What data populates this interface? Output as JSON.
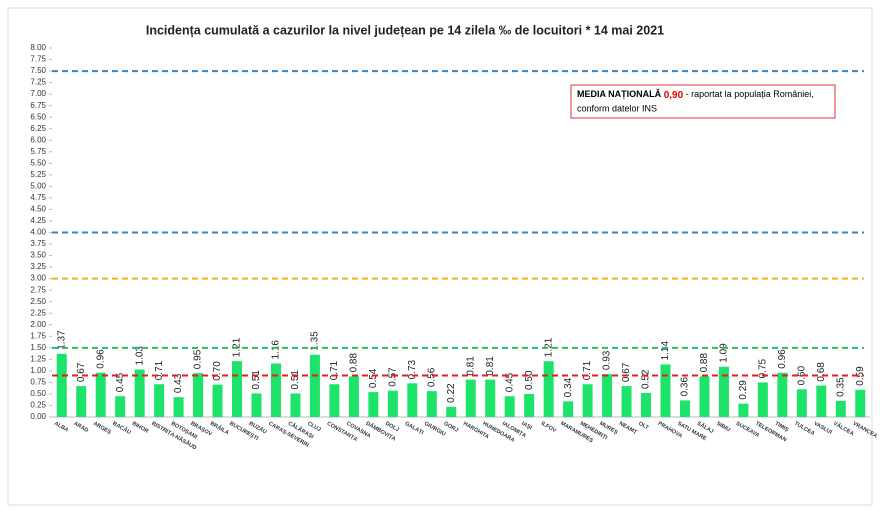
{
  "chart_data": {
    "type": "bar",
    "title": "Incidența cumulată a cazurilor la nivel județean pe 14 zilela ‰ de locuitori *  14 mai 2021",
    "categories": [
      "ALBA",
      "ARAD",
      "ARGEȘ",
      "BACĂU",
      "BIHOR",
      "BISTRIȚA-NĂSĂUD",
      "BOTOȘANI",
      "BRAȘOV",
      "BRĂILA",
      "BUCUREȘTI",
      "BUZĂU",
      "CARAȘ-SEVERIN",
      "CĂLĂRAȘI",
      "CLUJ",
      "CONSTANȚA",
      "COVASNA",
      "DÂMBOVIȚA",
      "DOLJ",
      "GALAȚI",
      "GIURGIU",
      "GORJ",
      "HARGHITA",
      "HUNEDOARA",
      "IALOMIȚA",
      "IAȘI",
      "ILFOV",
      "MARAMUREȘ",
      "MEHEDINȚI",
      "MUREȘ",
      "NEAMȚ",
      "OLT",
      "PRAHOVA",
      "SATU MARE",
      "SĂLAJ",
      "SIBIU",
      "SUCEAVA",
      "TELEORMAN",
      "TIMIȘ",
      "TULCEA",
      "VASLUI",
      "VÂLCEA",
      "VRANCEA"
    ],
    "values": [
      1.37,
      0.67,
      0.96,
      0.45,
      1.03,
      0.71,
      0.43,
      0.95,
      0.7,
      1.21,
      0.51,
      1.16,
      0.51,
      1.35,
      0.71,
      0.88,
      0.54,
      0.57,
      0.73,
      0.56,
      0.22,
      0.81,
      0.81,
      0.45,
      0.5,
      1.21,
      0.34,
      0.71,
      0.93,
      0.67,
      0.52,
      1.14,
      0.36,
      0.88,
      1.09,
      0.29,
      0.75,
      0.96,
      0.6,
      0.68,
      0.35,
      0.59
    ],
    "value_labels": [
      "1.37",
      "0.67",
      "0.96",
      "0.45",
      "1.03",
      "0.71",
      "0.43",
      "0.95",
      "0.70",
      "1.21",
      "0.51",
      "1.16",
      "0.51",
      "1.35",
      "0.71",
      "0.88",
      "0.54",
      "0.57",
      "0.73",
      "0.56",
      "0.22",
      "0.81",
      "0.81",
      "0.45",
      "0.50",
      "1.21",
      "0.34",
      "0.71",
      "0.93",
      "0.67",
      "0.52",
      "1.14",
      "0.36",
      "0.88",
      "1.09",
      "0.29",
      "0.75",
      "0.96",
      "0.60",
      "0.68",
      "0.35",
      "0.59"
    ],
    "color": "#1ee36a",
    "ylim": [
      0,
      8
    ],
    "yticks": [
      {
        "value": 0,
        "label": "0.00"
      },
      {
        "value": 0.25,
        "label": "0.25"
      },
      {
        "value": 0.5,
        "label": "0.50"
      },
      {
        "value": 0.75,
        "label": "0.75"
      },
      {
        "value": 1,
        "label": "1.00"
      },
      {
        "value": 1.25,
        "label": "1.25"
      },
      {
        "value": 1.5,
        "label": "1.50"
      },
      {
        "value": 1.75,
        "label": "1.75"
      },
      {
        "value": 2,
        "label": "2.00"
      },
      {
        "value": 2.25,
        "label": "2.25"
      },
      {
        "value": 2.5,
        "label": "2.50"
      },
      {
        "value": 2.75,
        "label": "2.75"
      },
      {
        "value": 3,
        "label": "3.00"
      },
      {
        "value": 3.25,
        "label": "3.25"
      },
      {
        "value": 3.5,
        "label": "3.50"
      },
      {
        "value": 3.75,
        "label": "3.75"
      },
      {
        "value": 4,
        "label": "4.00"
      },
      {
        "value": 4.25,
        "label": "4.25"
      },
      {
        "value": 4.5,
        "label": "4.50"
      },
      {
        "value": 4.75,
        "label": "4.75"
      },
      {
        "value": 5,
        "label": "5.00"
      },
      {
        "value": 5.25,
        "label": "5.25"
      },
      {
        "value": 5.5,
        "label": "5.50"
      },
      {
        "value": 5.75,
        "label": "5.75"
      },
      {
        "value": 6,
        "label": "6.00"
      },
      {
        "value": 6.25,
        "label": "6.25"
      },
      {
        "value": 6.5,
        "label": "6.50"
      },
      {
        "value": 6.75,
        "label": "6.75"
      },
      {
        "value": 7,
        "label": "7.00"
      },
      {
        "value": 7.25,
        "label": "7.25"
      },
      {
        "value": 7.5,
        "label": "7.50"
      },
      {
        "value": 7.75,
        "label": "7.75"
      },
      {
        "value": 8,
        "label": "8.00"
      }
    ],
    "reference_lines": [
      {
        "value": 7.5,
        "color": "#2e86c8"
      },
      {
        "value": 4,
        "color": "#2e86c8"
      },
      {
        "value": 3,
        "color": "#f0b41e"
      },
      {
        "value": 1.5,
        "color": "#2eb86a"
      },
      {
        "value": 0.9,
        "color": "#e0201e"
      }
    ],
    "annotation": {
      "heading": "MEDIA NAȚIONALĂ",
      "value": "0,90",
      "text": "- raportat la populația României,",
      "text2": "conform datelor INS"
    }
  }
}
